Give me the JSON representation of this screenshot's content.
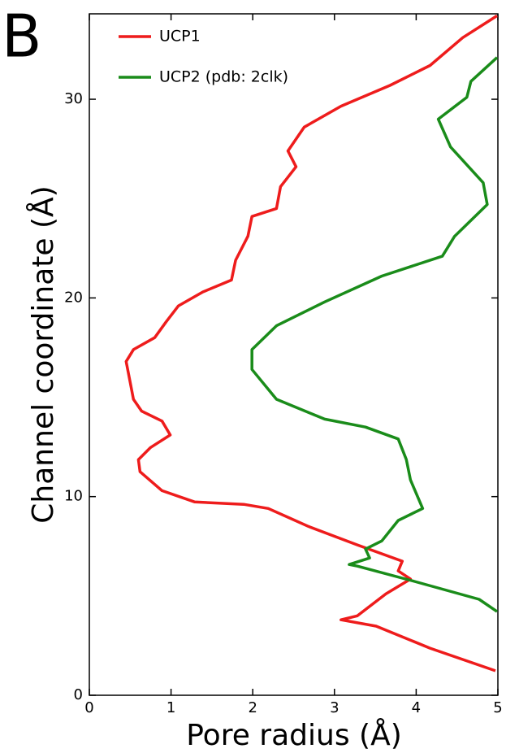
{
  "chart_data": {
    "type": "line",
    "panel_label": "B",
    "x_label": "Pore radius (Å)",
    "y_label": "Channel coordinate (Å)",
    "xlim": [
      0,
      5
    ],
    "ylim": [
      0,
      34.3
    ],
    "xticks": [
      0,
      1,
      2,
      3,
      4,
      5
    ],
    "yticks": [
      0,
      10,
      20,
      30
    ],
    "series": [
      {
        "name": "UCP1",
        "color": "#ee1c1c",
        "x": [
          4.97,
          4.17,
          3.51,
          3.08,
          3.28,
          3.63,
          3.93,
          3.78,
          3.83,
          3.28,
          2.68,
          2.19,
          1.89,
          1.29,
          0.89,
          0.62,
          0.6,
          0.75,
          0.99,
          0.89,
          0.64,
          0.54,
          0.5,
          0.45,
          0.54,
          0.8,
          0.94,
          1.09,
          1.39,
          1.74,
          1.79,
          1.94,
          1.99,
          2.29,
          2.34,
          2.53,
          2.43,
          2.63,
          3.08,
          3.68,
          4.17,
          4.57,
          4.99
        ],
        "y": [
          1.23,
          2.37,
          3.48,
          3.8,
          4.0,
          5.11,
          5.85,
          6.26,
          6.75,
          7.57,
          8.5,
          9.4,
          9.61,
          9.73,
          10.3,
          11.25,
          11.86,
          12.47,
          13.1,
          13.8,
          14.3,
          14.9,
          15.75,
          16.8,
          17.4,
          18.0,
          18.8,
          19.6,
          20.3,
          20.9,
          21.9,
          23.1,
          24.1,
          24.5,
          25.6,
          26.6,
          27.4,
          28.6,
          29.65,
          30.7,
          31.7,
          33.1,
          34.2
        ]
      },
      {
        "name": "UCP2 (pdb: 2clk)",
        "color": "#1a8c1a",
        "x": [
          4.99,
          4.77,
          3.98,
          3.28,
          3.18,
          3.43,
          3.38,
          3.58,
          3.78,
          4.08,
          3.93,
          3.88,
          3.78,
          3.38,
          2.88,
          2.29,
          1.99,
          1.99,
          2.29,
          2.88,
          3.58,
          4.32,
          4.47,
          4.87,
          4.82,
          4.42,
          4.27,
          4.62,
          4.67,
          4.99
        ],
        "y": [
          4.21,
          4.83,
          5.73,
          6.5,
          6.58,
          6.91,
          7.36,
          7.77,
          8.8,
          9.4,
          10.84,
          11.86,
          12.9,
          13.5,
          13.9,
          14.9,
          16.4,
          17.4,
          18.6,
          19.8,
          21.1,
          22.1,
          23.1,
          24.7,
          25.8,
          27.6,
          29.0,
          30.1,
          30.9,
          32.1
        ]
      }
    ]
  }
}
